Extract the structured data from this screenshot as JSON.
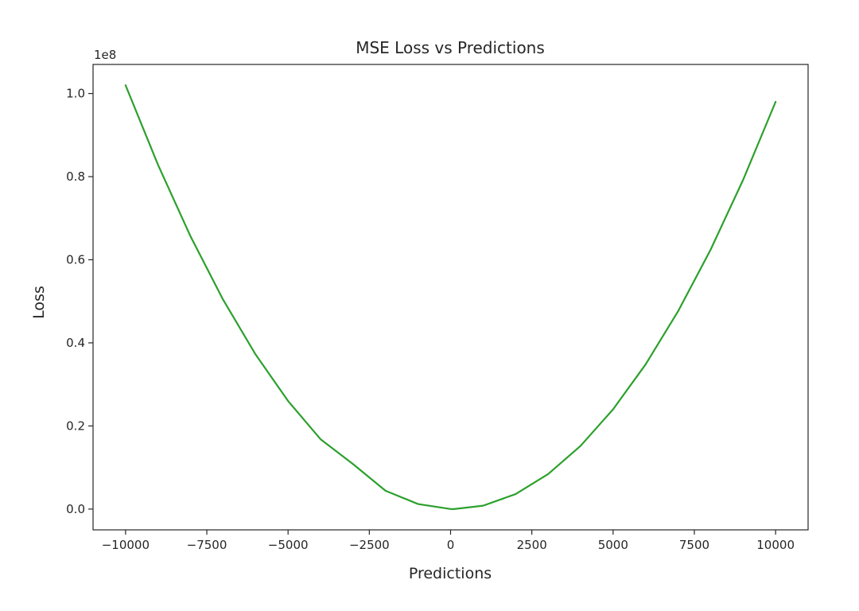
{
  "chart_data": {
    "type": "line",
    "title": "MSE Loss vs Predictions",
    "xlabel": "Predictions",
    "ylabel": "Loss",
    "y_offset_label": "1e8",
    "xlim": [
      -11000,
      11000
    ],
    "ylim": [
      -0.05,
      1.07
    ],
    "x_ticks": [
      -10000,
      -7500,
      -5000,
      -2500,
      0,
      2500,
      5000,
      7500,
      10000
    ],
    "x_tick_labels": [
      "−10000",
      "−7500",
      "−5000",
      "−2500",
      "0",
      "2500",
      "5000",
      "7500",
      "10000"
    ],
    "y_ticks": [
      0.0,
      0.2,
      0.4,
      0.6,
      0.8,
      1.0
    ],
    "y_tick_labels": [
      "0.0",
      "0.2",
      "0.4",
      "0.6",
      "0.8",
      "1.0"
    ],
    "grid": false,
    "series": [
      {
        "color": "#2ca02c",
        "x": [
          -10000,
          -9000,
          -8000,
          -7000,
          -6000,
          -5000,
          -4000,
          -3000,
          -2000,
          -1000,
          0,
          100,
          1000,
          2000,
          3000,
          4000,
          5000,
          6000,
          7000,
          8000,
          9000,
          10000
        ],
        "y": [
          1.02,
          0.8281,
          0.6561,
          0.5041,
          0.3721,
          0.2601,
          0.1681,
          0.1082,
          0.0441,
          0.0121,
          0.0001,
          0.0,
          0.0081,
          0.0361,
          0.0841,
          0.1521,
          0.2401,
          0.3481,
          0.4761,
          0.6241,
          0.7921,
          0.98
        ]
      }
    ]
  }
}
